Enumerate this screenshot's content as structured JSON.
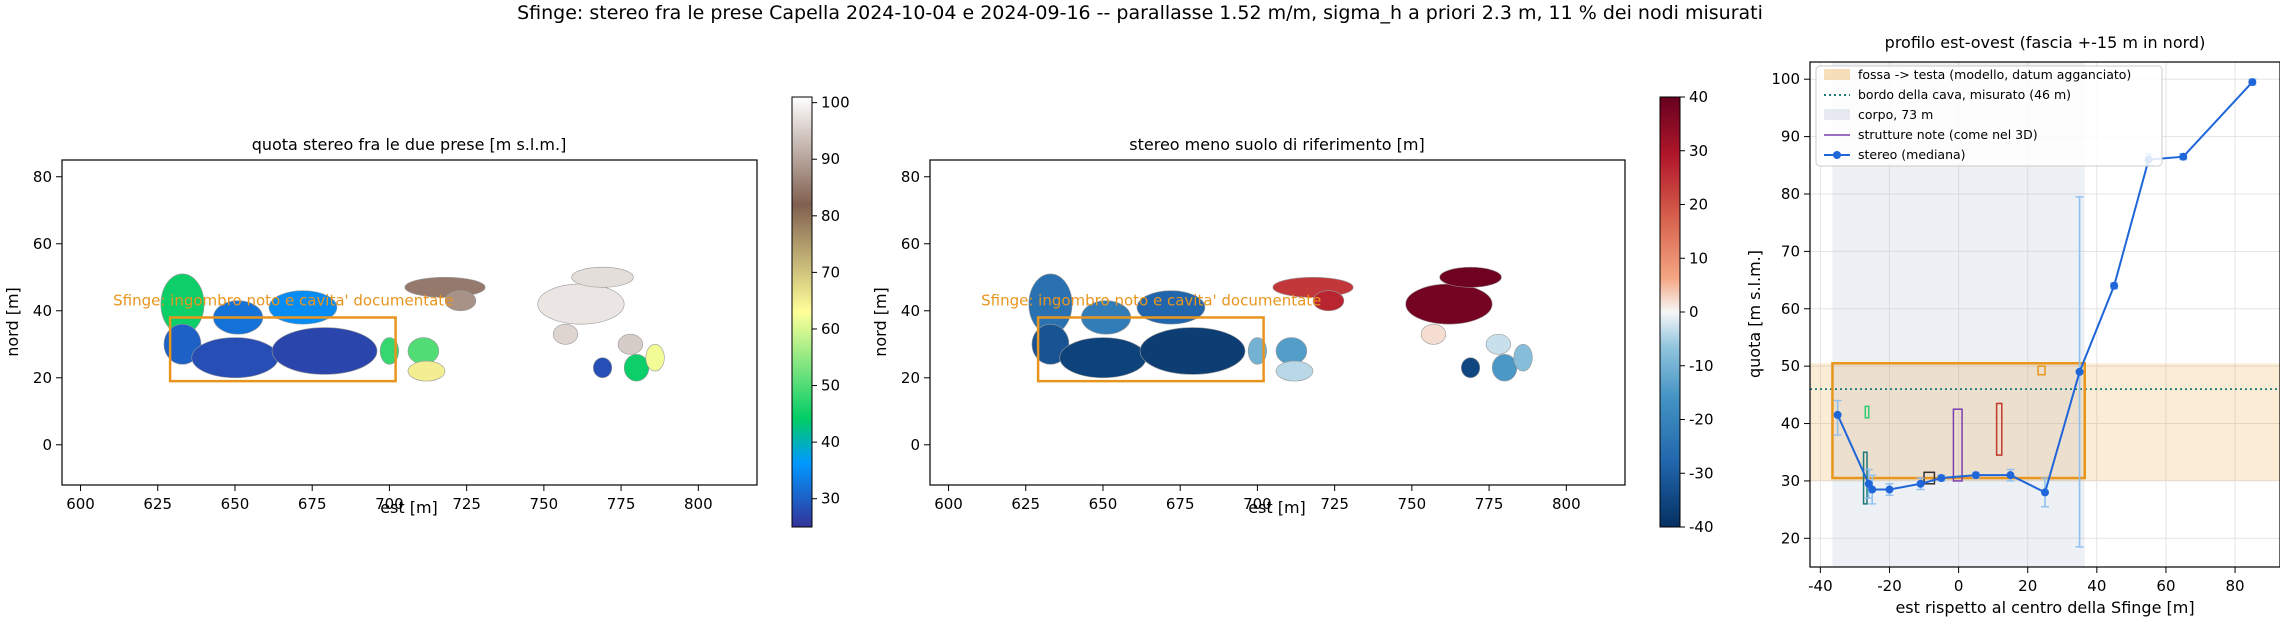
{
  "figure": {
    "suptitle": "Sfinge: stereo fra le prese Capella 2024-10-04 e 2024-09-16 -- parallasse 1.52 m/m, sigma_h a priori 2.3 m, 11 % dei nodi misurati"
  },
  "chart_data": [
    {
      "type": "heatmap",
      "title": "quota stereo fra le due prese [m s.l.m.]",
      "xlabel": "est [m]",
      "ylabel": "nord [m]",
      "xlim": [
        594,
        819
      ],
      "ylim": [
        -12,
        85
      ],
      "xticks": [
        600,
        625,
        650,
        675,
        700,
        725,
        750,
        775,
        800
      ],
      "yticks": [
        0,
        20,
        40,
        60,
        80
      ],
      "colormap": "terrain",
      "colorbar": {
        "vmin": 25,
        "vmax": 101,
        "ticks": [
          30,
          40,
          50,
          60,
          70,
          80,
          90,
          100
        ]
      },
      "annotation": {
        "text": "Sfinge: ingombro noto e cavita' documentate",
        "color": "#e8951e"
      },
      "footprint_rect": {
        "x": [
          629,
          702
        ],
        "y": [
          19,
          38
        ],
        "color": "#e8951e"
      },
      "blobs": [
        {
          "x": 633,
          "y": 42,
          "rx": 7,
          "ry": 9,
          "value": 45
        },
        {
          "x": 633,
          "y": 30,
          "rx": 6,
          "ry": 6,
          "value": 30
        },
        {
          "x": 650,
          "y": 26,
          "rx": 14,
          "ry": 6,
          "value": 28
        },
        {
          "x": 672,
          "y": 41,
          "rx": 11,
          "ry": 5,
          "value": 35
        },
        {
          "x": 679,
          "y": 28,
          "rx": 17,
          "ry": 7,
          "value": 27
        },
        {
          "x": 651,
          "y": 38,
          "rx": 8,
          "ry": 5,
          "value": 32
        },
        {
          "x": 700,
          "y": 28,
          "rx": 3,
          "ry": 4,
          "value": 48
        },
        {
          "x": 718,
          "y": 47,
          "rx": 13,
          "ry": 3,
          "value": 85
        },
        {
          "x": 723,
          "y": 43,
          "rx": 5,
          "ry": 3,
          "value": 88
        },
        {
          "x": 711,
          "y": 28,
          "rx": 5,
          "ry": 4,
          "value": 50
        },
        {
          "x": 712,
          "y": 22,
          "rx": 6,
          "ry": 3,
          "value": 65
        },
        {
          "x": 762,
          "y": 42,
          "rx": 14,
          "ry": 6,
          "value": 98
        },
        {
          "x": 769,
          "y": 50,
          "rx": 10,
          "ry": 3,
          "value": 97
        },
        {
          "x": 757,
          "y": 33,
          "rx": 4,
          "ry": 3,
          "value": 96
        },
        {
          "x": 778,
          "y": 30,
          "rx": 4,
          "ry": 3,
          "value": 95
        },
        {
          "x": 780,
          "y": 23,
          "rx": 4,
          "ry": 4,
          "value": 45
        },
        {
          "x": 769,
          "y": 23,
          "rx": 3,
          "ry": 3,
          "value": 28
        },
        {
          "x": 786,
          "y": 26,
          "rx": 3,
          "ry": 4,
          "value": 62
        }
      ]
    },
    {
      "type": "heatmap",
      "title": "stereo meno suolo di riferimento [m]",
      "xlabel": "est [m]",
      "ylabel": "nord [m]",
      "xlim": [
        594,
        819
      ],
      "ylim": [
        -12,
        85
      ],
      "xticks": [
        600,
        625,
        650,
        675,
        700,
        725,
        750,
        775,
        800
      ],
      "yticks": [
        0,
        20,
        40,
        60,
        80
      ],
      "colormap": "RdBu_r",
      "colorbar": {
        "vmin": -40,
        "vmax": 40,
        "ticks": [
          -40,
          -30,
          -20,
          -10,
          0,
          10,
          20,
          30,
          40
        ]
      },
      "annotation": {
        "text": "Sfinge: ingombro noto e cavita' documentate",
        "color": "#e8951e"
      },
      "footprint_rect": {
        "x": [
          629,
          702
        ],
        "y": [
          19,
          38
        ],
        "color": "#e8951e"
      },
      "blobs": [
        {
          "x": 633,
          "y": 42,
          "rx": 7,
          "ry": 9,
          "value": -25
        },
        {
          "x": 633,
          "y": 30,
          "rx": 6,
          "ry": 6,
          "value": -32
        },
        {
          "x": 650,
          "y": 26,
          "rx": 14,
          "ry": 6,
          "value": -36
        },
        {
          "x": 672,
          "y": 41,
          "rx": 11,
          "ry": 5,
          "value": -28
        },
        {
          "x": 679,
          "y": 28,
          "rx": 17,
          "ry": 7,
          "value": -37
        },
        {
          "x": 651,
          "y": 38,
          "rx": 8,
          "ry": 5,
          "value": -22
        },
        {
          "x": 700,
          "y": 28,
          "rx": 3,
          "ry": 4,
          "value": -10
        },
        {
          "x": 718,
          "y": 47,
          "rx": 13,
          "ry": 3,
          "value": 24
        },
        {
          "x": 723,
          "y": 43,
          "rx": 5,
          "ry": 3,
          "value": 27
        },
        {
          "x": 711,
          "y": 28,
          "rx": 5,
          "ry": 4,
          "value": -14
        },
        {
          "x": 712,
          "y": 22,
          "rx": 6,
          "ry": 3,
          "value": -4
        },
        {
          "x": 762,
          "y": 42,
          "rx": 14,
          "ry": 6,
          "value": 38
        },
        {
          "x": 769,
          "y": 50,
          "rx": 10,
          "ry": 3,
          "value": 39
        },
        {
          "x": 757,
          "y": 33,
          "rx": 4,
          "ry": 3,
          "value": 2
        },
        {
          "x": 778,
          "y": 30,
          "rx": 4,
          "ry": 3,
          "value": -3
        },
        {
          "x": 780,
          "y": 23,
          "rx": 4,
          "ry": 4,
          "value": -15
        },
        {
          "x": 769,
          "y": 23,
          "rx": 3,
          "ry": 3,
          "value": -35
        },
        {
          "x": 786,
          "y": 26,
          "rx": 3,
          "ry": 4,
          "value": -8
        }
      ]
    },
    {
      "type": "line",
      "title": "profilo est-ovest (fascia +-15 m in nord)",
      "xlabel": "est rispetto al centro della Sfinge [m]",
      "ylabel": "quota [m s.l.m.]",
      "xlim": [
        -43,
        93
      ],
      "ylim": [
        15,
        103
      ],
      "xticks": [
        -40,
        -20,
        0,
        20,
        40,
        60,
        80
      ],
      "yticks": [
        20,
        30,
        40,
        50,
        60,
        70,
        80,
        90,
        100
      ],
      "grid": true,
      "legend_position": "top-left",
      "legend": [
        "fossa -> testa (modello, datum agganciato)",
        "bordo della cava, misurato (46 m)",
        "corpo, 73 m",
        "strutture note (come nel 3D)",
        "stereo (mediana)"
      ],
      "band_fossa_testa": {
        "y": [
          30,
          50.5
        ],
        "color": "#e8951e"
      },
      "bordo_cava": {
        "y": 46,
        "color": "#1a7a7a"
      },
      "corpo": {
        "x": [
          -36.5,
          36.5
        ],
        "color": "#b9c4d8"
      },
      "footprint_box": {
        "x": [
          -36.5,
          36.5
        ],
        "y": [
          30.5,
          50.5
        ],
        "color": "#e8951e"
      },
      "structures": [
        {
          "x": [
            -27.5,
            -26.5
          ],
          "y": [
            26,
            35
          ],
          "color": "#1a7a7a"
        },
        {
          "x": [
            -27,
            -26
          ],
          "y": [
            41,
            43
          ],
          "color": "#2ecc71"
        },
        {
          "x": [
            -10,
            -7
          ],
          "y": [
            29.5,
            31.5
          ],
          "color": "#333333"
        },
        {
          "x": [
            -1.5,
            1
          ],
          "y": [
            30,
            42.5
          ],
          "color": "#7b3fb0"
        },
        {
          "x": [
            11,
            12.5
          ],
          "y": [
            34.5,
            43.5
          ],
          "color": "#c0392b"
        },
        {
          "x": [
            23,
            25
          ],
          "y": [
            48.5,
            50
          ],
          "color": "#e8951e"
        }
      ],
      "series": [
        {
          "name": "stereo (mediana)",
          "color": "#1f66d9",
          "x": [
            -35,
            -26,
            -25,
            -20,
            -11,
            -5,
            5,
            15,
            25,
            35,
            45,
            55,
            65,
            85
          ],
          "y": [
            41.5,
            29.5,
            28.5,
            28.5,
            29.5,
            30.5,
            31,
            31,
            28,
            49,
            64,
            86,
            86.5,
            99.5
          ],
          "yerr_low": [
            38,
            27,
            26,
            27.5,
            28.5,
            30,
            30.5,
            30,
            25.5,
            18.5,
            63.5,
            85,
            86,
            99
          ],
          "yerr_high": [
            44,
            32,
            31,
            29.5,
            30.5,
            31,
            31.5,
            32,
            30.5,
            79.5,
            64.5,
            87,
            87,
            100
          ]
        }
      ]
    }
  ]
}
